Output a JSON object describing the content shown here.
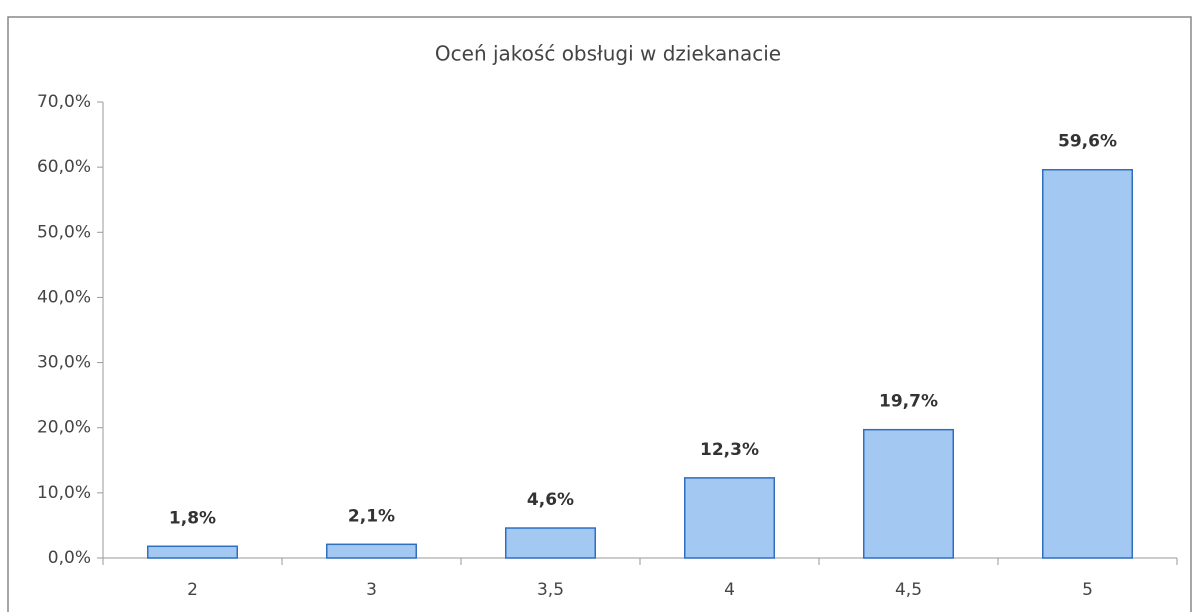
{
  "chart_data": {
    "type": "bar",
    "title": "Oceń jakość obsługi w dziekanacie",
    "categories": [
      "2",
      "3",
      "3,5",
      "4",
      "4,5",
      "5"
    ],
    "values": [
      1.8,
      2.1,
      4.6,
      12.3,
      19.7,
      59.6
    ],
    "value_labels": [
      "1,8%",
      "2,1%",
      "4,6%",
      "12,3%",
      "19,7%",
      "59,6%"
    ],
    "color": "#a3c8f2",
    "ylim": [
      0,
      70
    ],
    "yticks": [
      {
        "value": 0,
        "label": "0,0%"
      },
      {
        "value": 10,
        "label": "10,0%"
      },
      {
        "value": 20,
        "label": "20,0%"
      },
      {
        "value": 30,
        "label": "30,0%"
      },
      {
        "value": 40,
        "label": "40,0%"
      },
      {
        "value": 50,
        "label": "50,0%"
      },
      {
        "value": 60,
        "label": "60,0%"
      },
      {
        "value": 70,
        "label": "70,0%"
      }
    ],
    "grid": false
  }
}
